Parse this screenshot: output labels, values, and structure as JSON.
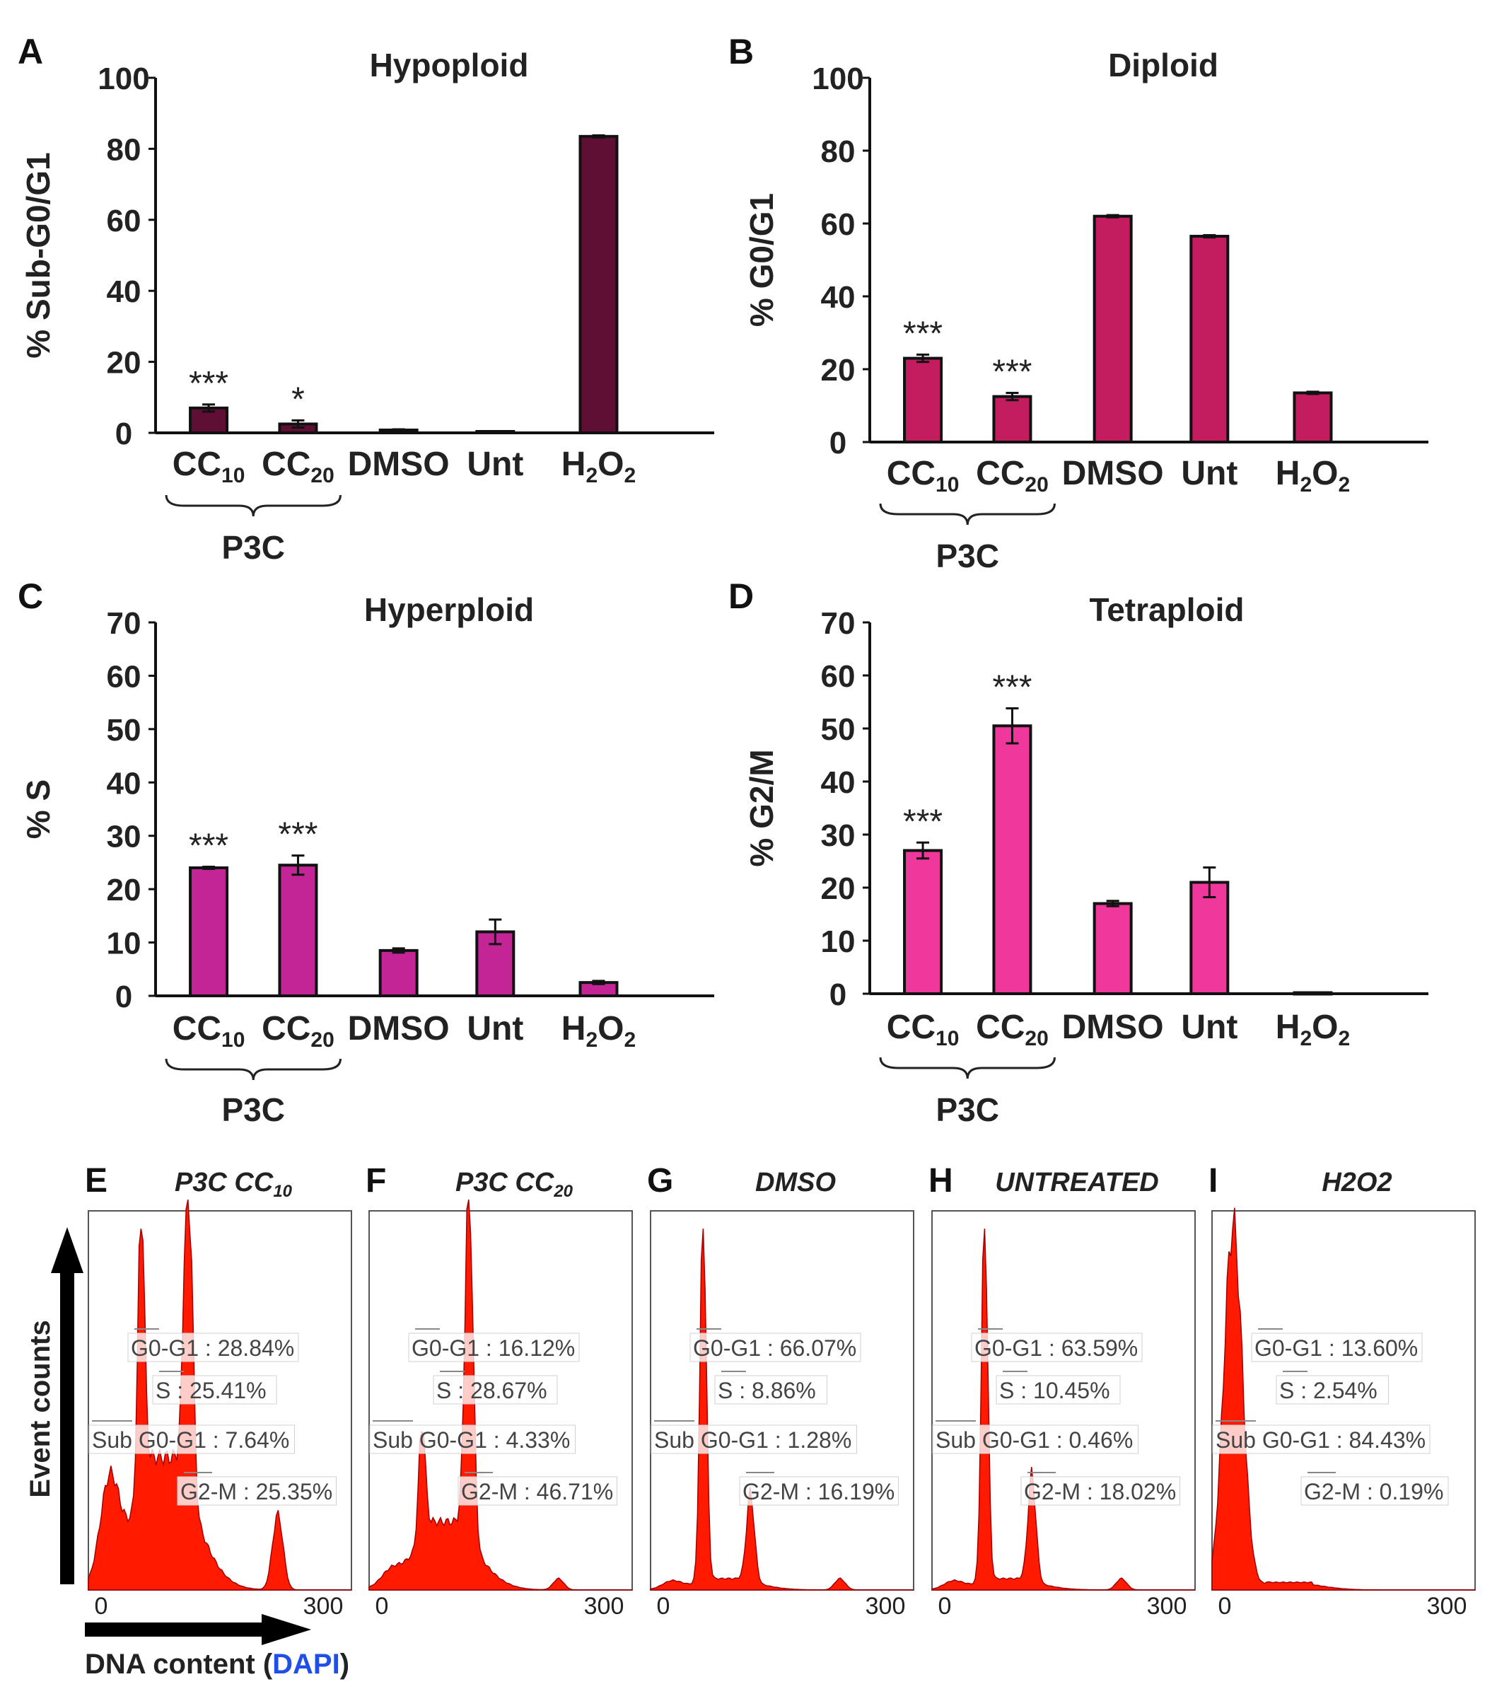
{
  "chart_data": [
    {
      "panel": "A",
      "type": "bar",
      "title": "Hypoploid",
      "ylabel": "% Sub-G0/G1",
      "ylim": [
        0,
        100
      ],
      "yticks": [
        "0",
        "20",
        "40",
        "60",
        "80",
        "100"
      ],
      "categories": [
        {
          "base": "CC",
          "sub": "10",
          "post": ""
        },
        {
          "base": "CC",
          "sub": "20",
          "post": ""
        },
        {
          "base": "DMSO",
          "sub": "",
          "post": ""
        },
        {
          "base": "Unt",
          "sub": "",
          "post": ""
        },
        {
          "base": "H",
          "sub": "2",
          "post": "O",
          "sub2": "2"
        }
      ],
      "values": [
        7,
        2.5,
        0.8,
        0.4,
        83.5
      ],
      "errors": [
        1.0,
        1.0,
        0.2,
        0.1,
        0.3
      ],
      "significance": [
        "***",
        "*",
        "",
        "",
        ""
      ],
      "group_label": "P3C",
      "color": "#5e0f33"
    },
    {
      "panel": "B",
      "type": "bar",
      "title": "Diploid",
      "ylabel": "% G0/G1",
      "ylim": [
        0,
        100
      ],
      "yticks": [
        "0",
        "20",
        "40",
        "60",
        "80",
        "100"
      ],
      "categories": [
        {
          "base": "CC",
          "sub": "10",
          "post": ""
        },
        {
          "base": "CC",
          "sub": "20",
          "post": ""
        },
        {
          "base": "DMSO",
          "sub": "",
          "post": ""
        },
        {
          "base": "Unt",
          "sub": "",
          "post": ""
        },
        {
          "base": "H",
          "sub": "2",
          "post": "O",
          "sub2": "2"
        }
      ],
      "values": [
        23,
        12.5,
        62,
        56.5,
        13.5
      ],
      "errors": [
        1.0,
        1.0,
        0.3,
        0.3,
        0.3
      ],
      "significance": [
        "***",
        "***",
        "",
        "",
        ""
      ],
      "group_label": "P3C",
      "color": "#c41d5f"
    },
    {
      "panel": "C",
      "type": "bar",
      "title": "Hyperploid",
      "ylabel": "% S",
      "ylim": [
        0,
        70
      ],
      "yticks": [
        "0",
        "10",
        "20",
        "30",
        "40",
        "50",
        "60",
        "70"
      ],
      "categories": [
        {
          "base": "CC",
          "sub": "10",
          "post": ""
        },
        {
          "base": "CC",
          "sub": "20",
          "post": ""
        },
        {
          "base": "DMSO",
          "sub": "",
          "post": ""
        },
        {
          "base": "Unt",
          "sub": "",
          "post": ""
        },
        {
          "base": "H",
          "sub": "2",
          "post": "O",
          "sub2": "2"
        }
      ],
      "values": [
        24,
        24.5,
        8.5,
        12,
        2.5
      ],
      "errors": [
        0.2,
        1.8,
        0.4,
        2.3,
        0.3
      ],
      "significance": [
        "***",
        "***",
        "",
        "",
        ""
      ],
      "group_label": "P3C",
      "color": "#c42596"
    },
    {
      "panel": "D",
      "type": "bar",
      "title": "Tetraploid",
      "ylabel": "% G2/M",
      "ylim": [
        0,
        70
      ],
      "yticks": [
        "0",
        "10",
        "20",
        "30",
        "40",
        "50",
        "60",
        "70"
      ],
      "categories": [
        {
          "base": "CC",
          "sub": "10",
          "post": ""
        },
        {
          "base": "CC",
          "sub": "20",
          "post": ""
        },
        {
          "base": "DMSO",
          "sub": "",
          "post": ""
        },
        {
          "base": "Unt",
          "sub": "",
          "post": ""
        },
        {
          "base": "H",
          "sub": "2",
          "post": "O",
          "sub2": "2"
        }
      ],
      "values": [
        27,
        50.5,
        17,
        21,
        0.2
      ],
      "errors": [
        1.5,
        3.3,
        0.5,
        2.8,
        0.1
      ],
      "significance": [
        "***",
        "***",
        "",
        "",
        ""
      ],
      "group_label": "P3C",
      "color": "#f0379c"
    }
  ],
  "histograms": {
    "y_axis_label": "Event counts",
    "x_axis_label": "DNA content (",
    "x_axis_label_stain": "DAPI",
    "x_axis_label_close": ")",
    "x_min_label": "0",
    "x_max_label": "300",
    "fill_color": "#ff1a00",
    "panels": [
      {
        "letter": "E",
        "title": "P3C CC",
        "title_sub": "10",
        "g0g1": "G0-G1 : 28.84%",
        "s": "S : 25.41%",
        "sub": "Sub G0-G1 : 7.64%",
        "g2m": "G2-M : 25.35%",
        "peaks": {
          "g1": 0.74,
          "g1pos": 0.2,
          "g2": 0.98,
          "g2pos": 0.38,
          "debris": 0.25,
          "s": 0.35,
          "tet": 0.2
        }
      },
      {
        "letter": "F",
        "title": "P3C CC",
        "title_sub": "20",
        "g0g1": "G0-G1 : 16.12%",
        "s": "S : 28.67%",
        "sub": "Sub G0-G1 : 4.33%",
        "g2m": "G2-M : 46.71%",
        "peaks": {
          "g1": 0.3,
          "g1pos": 0.2,
          "g2": 0.97,
          "g2pos": 0.38,
          "debris": 0.03,
          "s": 0.18,
          "tet": 0.03
        }
      },
      {
        "letter": "G",
        "title": "DMSO",
        "title_sub": "",
        "g0g1": "G0-G1 : 66.07%",
        "s": "S : 8.86%",
        "sub": "Sub G0-G1 : 1.28%",
        "g2m": "G2-M : 16.19%",
        "peaks": {
          "g1": 0.96,
          "g1pos": 0.2,
          "g2": 0.23,
          "g2pos": 0.38,
          "debris": 0.02,
          "s": 0.03,
          "tet": 0.03
        }
      },
      {
        "letter": "H",
        "title": "UNTREATED",
        "title_sub": "",
        "g0g1": "G0-G1 : 63.59%",
        "s": "S : 10.45%",
        "sub": "Sub G0-G1 : 0.46%",
        "g2m": "G2-M : 18.02%",
        "peaks": {
          "g1": 0.96,
          "g1pos": 0.2,
          "g2": 0.28,
          "g2pos": 0.38,
          "debris": 0.02,
          "s": 0.03,
          "tet": 0.03
        }
      },
      {
        "letter": "I",
        "title": "H2O2",
        "title_sub": "",
        "g0g1": "G0-G1 : 13.60%",
        "s": "S : 2.54%",
        "sub": "Sub G0-G1 : 84.43%",
        "g2m": "G2-M : 0.19%",
        "peaks": {
          "g1": 0.0,
          "g1pos": 0.2,
          "g2": 0.0,
          "g2pos": 0.38,
          "debris": 0.96,
          "s": 0.02,
          "tet": 0.0
        }
      }
    ]
  }
}
